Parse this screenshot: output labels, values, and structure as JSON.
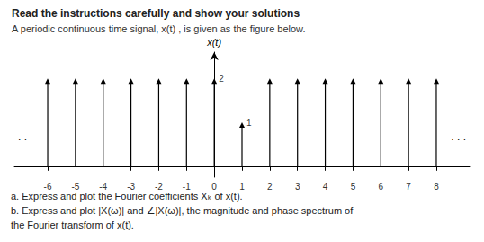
{
  "chart_data": {
    "type": "stem",
    "title": "Read the instructions carefully and show your solutions",
    "subtitle": "A periodic continuous time signal, x(t) , is given as the figure below.",
    "ylabel": "x(t)",
    "x": [
      -6,
      -5,
      -4,
      -3,
      -2,
      -1,
      0,
      1,
      2,
      3,
      4,
      5,
      6,
      7,
      8
    ],
    "values": [
      2,
      2,
      2,
      2,
      2,
      2,
      2,
      1,
      2,
      2,
      2,
      2,
      2,
      2,
      2
    ],
    "color": "#000000",
    "xlim": [
      -7.2,
      9.2
    ],
    "xticks": [
      -6,
      -5,
      -4,
      -3,
      -2,
      -1,
      0,
      1,
      2,
      3,
      4,
      5,
      6,
      7,
      8
    ],
    "ylim": [
      -0.25,
      2.6
    ],
    "tick_labels": "x",
    "grid": false,
    "annotations": [
      {
        "text": "2",
        "x": 0,
        "y": 2
      },
      {
        "text": "1",
        "x": 1,
        "y": 1
      }
    ],
    "continuation": [
      ". .",
      ". . ."
    ],
    "notes": [
      "a. Express and plot the Fourier coefficients Xₖ of x(t).",
      "b. Express and plot |X(ω)| and ∠|X(ω)|, the magnitude and phase spectrum of",
      "the Fourier transform of x(t)."
    ]
  }
}
